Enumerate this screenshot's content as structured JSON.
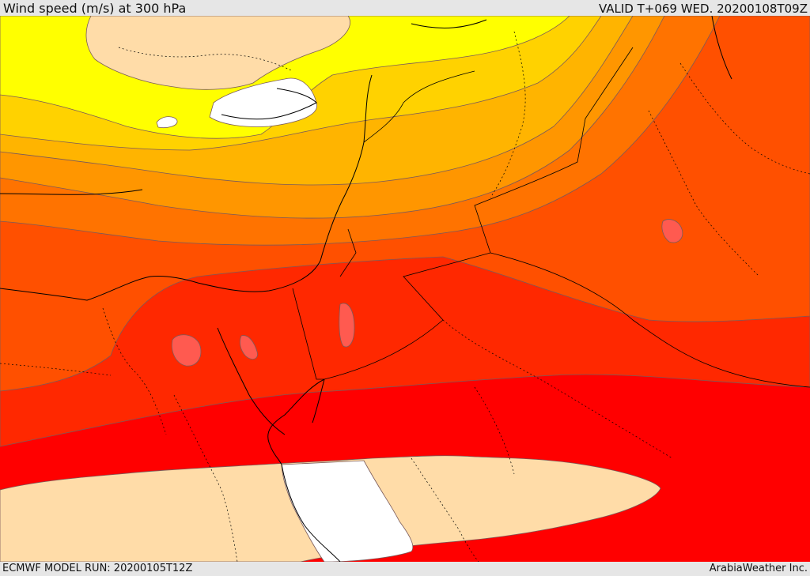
{
  "header": {
    "title": "Wind speed (m/s) at 300 hPa",
    "valid": "VALID T+069 WED. 20200108T09Z"
  },
  "footer": {
    "model_run": "ECMWF MODEL RUN: 20200105T12Z",
    "credit": "ArabiaWeather Inc."
  },
  "map": {
    "colors": {
      "calm": "#ffdca8",
      "white": "#ffffff",
      "yellow": "#ffff00",
      "gold": "#ffd200",
      "amber": "#ffb400",
      "orange": "#ff9600",
      "dark_orange": "#ff7300",
      "red_orange": "#ff5000",
      "scarlet": "#ff2800",
      "red": "#ff0000",
      "contour": "#7a5a5a",
      "coast": "#000000"
    }
  }
}
